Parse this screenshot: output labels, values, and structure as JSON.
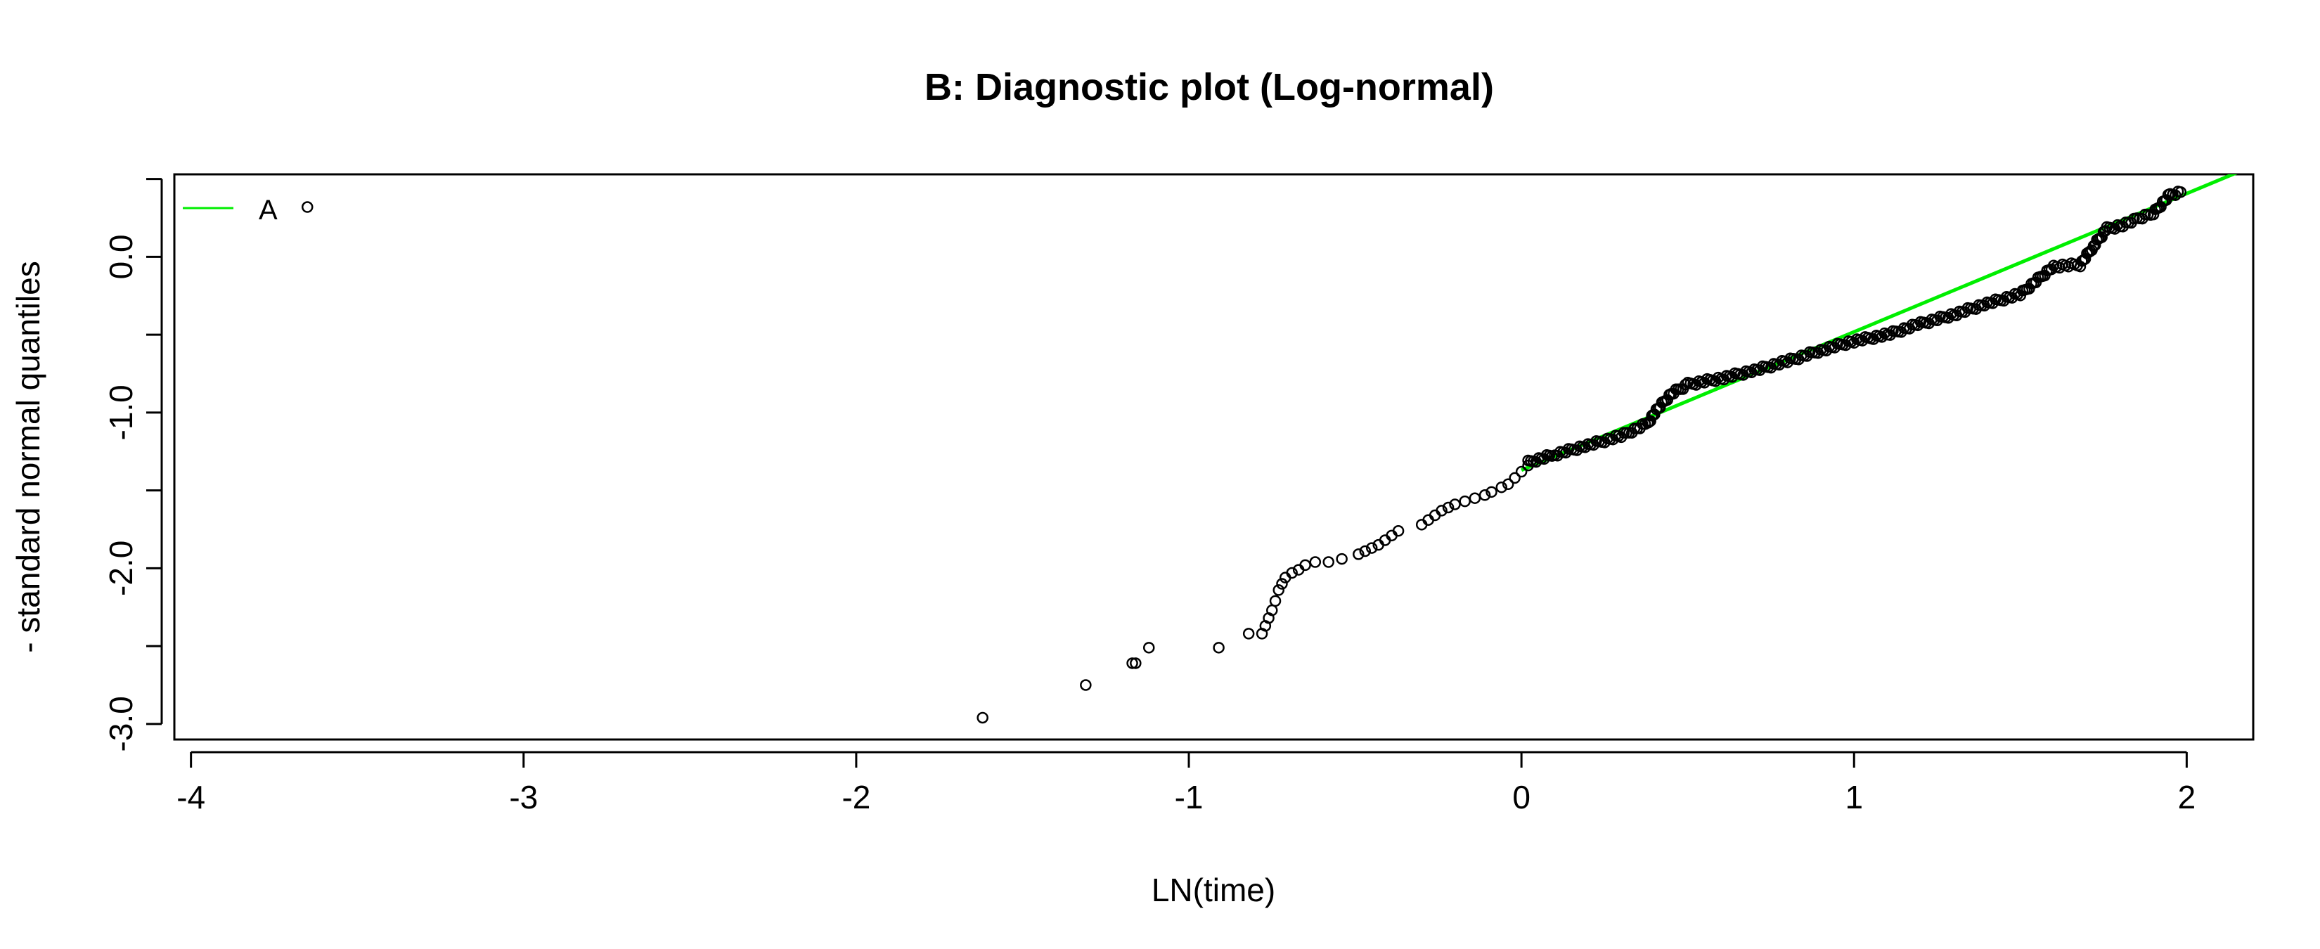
{
  "chart_data": {
    "type": "scatter",
    "title": "B: Diagnostic plot (Log-normal)",
    "xlabel": "LN(time)",
    "ylabel": "- standard normal quantiles",
    "xlim": [
      -4.05,
      2.2
    ],
    "ylim": [
      -3.1,
      0.53
    ],
    "xticks": [
      -4,
      -3,
      -2,
      -1,
      0,
      1,
      2
    ],
    "xtick_labels": [
      "-4",
      "-3",
      "-2",
      "-1",
      "0",
      "1",
      "2"
    ],
    "yticks": [
      -3.0,
      -2.5,
      -2.0,
      -1.5,
      -1.0,
      -0.5,
      0.0,
      0.5
    ],
    "ytick_labels": [
      "-3.0",
      "",
      "-2.0",
      "",
      "-1.0",
      "",
      "0.0",
      ""
    ],
    "grid": false,
    "legend": {
      "position": "top-left",
      "entries": [
        {
          "label": "A",
          "color": "#00ee00"
        }
      ]
    },
    "series": [
      {
        "kind": "points",
        "marker": "open-circle",
        "color": "#000000",
        "x": [
          -3.65,
          -1.62,
          -1.31,
          -1.17,
          -1.16,
          -1.12,
          -0.91,
          -0.82,
          -0.78,
          -0.77,
          -0.76,
          -0.75,
          -0.74,
          -0.73,
          -0.72,
          -0.71,
          -0.69,
          -0.67,
          -0.65,
          -0.62,
          -0.58,
          -0.54,
          -0.49,
          -0.47,
          -0.45,
          -0.43,
          -0.41,
          -0.39,
          -0.37,
          -0.3,
          -0.28,
          -0.26,
          -0.24,
          -0.22,
          -0.2,
          -0.17,
          -0.14,
          -0.11,
          -0.09,
          -0.06,
          -0.04,
          -0.02,
          0.0,
          0.02
        ],
        "y": [
          0.32,
          -2.96,
          -2.75,
          -2.61,
          -2.61,
          -2.51,
          -2.51,
          -2.42,
          -2.42,
          -2.37,
          -2.32,
          -2.27,
          -2.21,
          -2.14,
          -2.1,
          -2.06,
          -2.03,
          -2.01,
          -1.98,
          -1.96,
          -1.96,
          -1.94,
          -1.91,
          -1.89,
          -1.87,
          -1.85,
          -1.82,
          -1.79,
          -1.76,
          -1.72,
          -1.69,
          -1.66,
          -1.63,
          -1.61,
          -1.59,
          -1.57,
          -1.55,
          -1.53,
          -1.51,
          -1.48,
          -1.46,
          -1.42,
          -1.38,
          -1.34
        ]
      },
      {
        "kind": "dense-curve",
        "marker": "open-circle",
        "color": "#000000",
        "x": [
          0.02,
          0.1,
          0.2,
          0.3,
          0.38,
          0.4,
          0.45,
          0.5,
          0.6,
          0.7,
          0.8,
          0.9,
          1.0,
          1.1,
          1.2,
          1.3,
          1.4,
          1.5,
          1.6,
          1.68,
          1.72,
          1.76,
          1.8,
          1.85,
          1.9,
          1.95,
          1.99
        ],
        "y": [
          -1.32,
          -1.27,
          -1.21,
          -1.15,
          -1.07,
          -1.0,
          -0.88,
          -0.82,
          -0.78,
          -0.73,
          -0.67,
          -0.6,
          -0.54,
          -0.5,
          -0.43,
          -0.37,
          -0.3,
          -0.24,
          -0.06,
          -0.05,
          0.07,
          0.18,
          0.2,
          0.24,
          0.28,
          0.4,
          0.42
        ]
      },
      {
        "name": "A",
        "kind": "line",
        "color": "#00ee00",
        "x": [
          0.0,
          2.15
        ],
        "y": [
          -1.37,
          0.54
        ]
      }
    ]
  }
}
